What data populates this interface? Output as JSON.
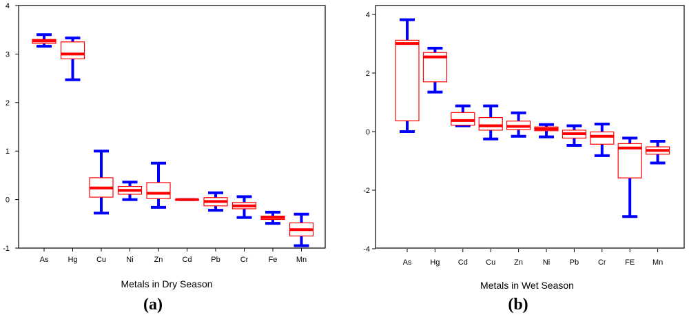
{
  "chart_data": [
    {
      "type": "box",
      "panel_label_pre": "(",
      "panel_label": "a",
      "panel_label_post": ")",
      "xlabel": "Metals in Dry Season",
      "ylabel": "",
      "ylim": [
        -1,
        4
      ],
      "yticks": [
        -1,
        0,
        1,
        2,
        3,
        4
      ],
      "box_color": "#ff0000",
      "whisker_color": "#0000ff",
      "categories": [
        "As",
        "Hg",
        "Cu",
        "Ni",
        "Zn",
        "Cd",
        "Pb",
        "Cr",
        "Fe",
        "Mn"
      ],
      "boxes": [
        {
          "min": 3.16,
          "q1": 3.22,
          "median": 3.27,
          "q3": 3.3,
          "max": 3.4
        },
        {
          "min": 2.47,
          "q1": 2.9,
          "median": 3.0,
          "q3": 3.25,
          "max": 3.33
        },
        {
          "min": -0.28,
          "q1": 0.05,
          "median": 0.24,
          "q3": 0.45,
          "max": 1.0
        },
        {
          "min": 0.0,
          "q1": 0.11,
          "median": 0.19,
          "q3": 0.27,
          "max": 0.36
        },
        {
          "min": -0.16,
          "q1": 0.02,
          "median": 0.13,
          "q3": 0.35,
          "max": 0.75
        },
        {
          "min": 0.0,
          "q1": 0.0,
          "median": 0.0,
          "q3": 0.0,
          "max": 0.0
        },
        {
          "min": -0.22,
          "q1": -0.13,
          "median": -0.04,
          "q3": 0.04,
          "max": 0.14
        },
        {
          "min": -0.37,
          "q1": -0.19,
          "median": -0.13,
          "q3": -0.06,
          "max": 0.06
        },
        {
          "min": -0.49,
          "q1": -0.41,
          "median": -0.37,
          "q3": -0.34,
          "max": -0.26
        },
        {
          "min": -0.95,
          "q1": -0.75,
          "median": -0.62,
          "q3": -0.48,
          "max": -0.3
        }
      ]
    },
    {
      "type": "box",
      "panel_label_pre": "(",
      "panel_label": "b",
      "panel_label_post": ")",
      "xlabel": "Metals in Wet Season",
      "ylabel": "",
      "ylim": [
        -4,
        4
      ],
      "yticks": [
        -4,
        -2,
        0,
        2,
        4
      ],
      "box_color": "#ff0000",
      "whisker_color": "#0000ff",
      "categories": [
        "As",
        "Hg",
        "Cd",
        "Cu",
        "Zn",
        "Ni",
        "Pb",
        "Cr",
        "FE",
        "Mn"
      ],
      "boxes": [
        {
          "min": 0.0,
          "q1": 0.37,
          "median": 3.01,
          "q3": 3.12,
          "max": 3.82
        },
        {
          "min": 1.35,
          "q1": 1.7,
          "median": 2.55,
          "q3": 2.7,
          "max": 2.85
        },
        {
          "min": 0.2,
          "q1": 0.22,
          "median": 0.38,
          "q3": 0.65,
          "max": 0.88
        },
        {
          "min": -0.25,
          "q1": 0.05,
          "median": 0.2,
          "q3": 0.48,
          "max": 0.88
        },
        {
          "min": -0.16,
          "q1": 0.07,
          "median": 0.18,
          "q3": 0.36,
          "max": 0.64
        },
        {
          "min": -0.18,
          "q1": 0.03,
          "median": 0.09,
          "q3": 0.16,
          "max": 0.24
        },
        {
          "min": -0.47,
          "q1": -0.22,
          "median": -0.07,
          "q3": 0.05,
          "max": 0.2
        },
        {
          "min": -0.82,
          "q1": -0.43,
          "median": -0.16,
          "q3": -0.01,
          "max": 0.26
        },
        {
          "min": -2.9,
          "q1": -1.58,
          "median": -0.56,
          "q3": -0.41,
          "max": -0.22
        },
        {
          "min": -1.07,
          "q1": -0.77,
          "median": -0.64,
          "q3": -0.52,
          "max": -0.33
        }
      ]
    }
  ]
}
